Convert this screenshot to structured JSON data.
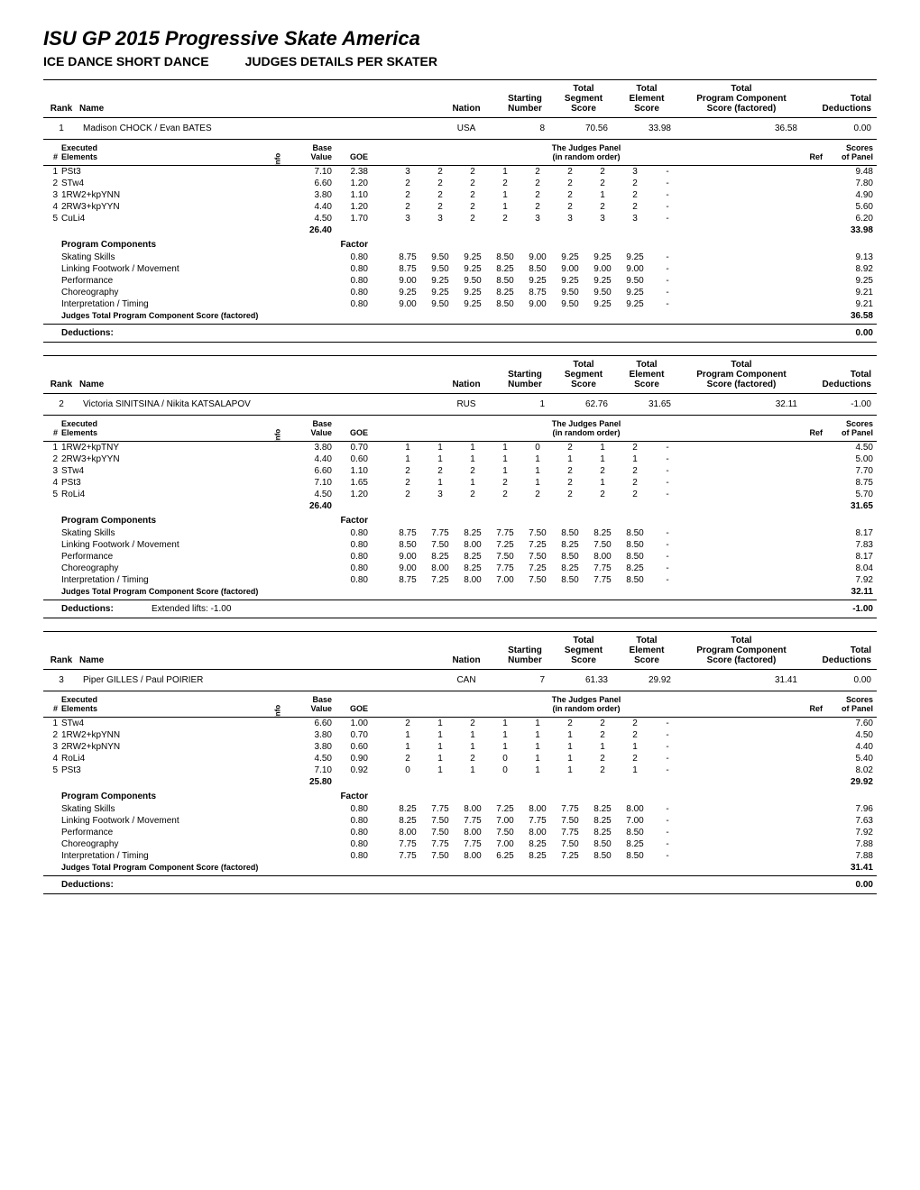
{
  "page": {
    "title": "ISU GP 2015 Progressive Skate America",
    "event": "ICE DANCE SHORT DANCE",
    "sheet": "JUDGES DETAILS PER SKATER"
  },
  "headers": {
    "rank": "Rank",
    "name": "Name",
    "nation": "Nation",
    "start_num": "Starting Number",
    "seg_score": "Total Segment Score",
    "elem_score": "Total Element Score",
    "comp_score": "Total Program Component Score (factored)",
    "deductions": "Total Deductions",
    "num": "#",
    "executed": "Executed Elements",
    "info": "Info",
    "base": "Base Value",
    "goe": "GOE",
    "judges_panel": "The Judges Panel (in random order)",
    "ref": "Ref",
    "sop": "Scores of Panel",
    "pc": "Program Components",
    "factor": "Factor",
    "jtpcs": "Judges Total Program Component Score (factored)",
    "deductions_label": "Deductions:",
    "extended_lifts": "Extended lifts:"
  },
  "colors": {
    "text": "#000000",
    "bg": "#ffffff",
    "border": "#000000"
  },
  "skaters": [
    {
      "rank": "1",
      "name": "Madison CHOCK / Evan BATES",
      "nation": "USA",
      "start_num": "8",
      "seg_score": "70.56",
      "elem_score": "33.98",
      "comp_score": "36.58",
      "deductions": "0.00",
      "elements": [
        {
          "n": "1",
          "code": "PSt3",
          "base": "7.10",
          "goe": "2.38",
          "j": [
            "3",
            "2",
            "2",
            "1",
            "2",
            "2",
            "2",
            "3",
            "-"
          ],
          "sop": "9.48"
        },
        {
          "n": "2",
          "code": "STw4",
          "base": "6.60",
          "goe": "1.20",
          "j": [
            "2",
            "2",
            "2",
            "2",
            "2",
            "2",
            "2",
            "2",
            "-"
          ],
          "sop": "7.80"
        },
        {
          "n": "3",
          "code": "1RW2+kpYNN",
          "base": "3.80",
          "goe": "1.10",
          "j": [
            "2",
            "2",
            "2",
            "1",
            "2",
            "2",
            "1",
            "2",
            "-"
          ],
          "sop": "4.90"
        },
        {
          "n": "4",
          "code": "2RW3+kpYYN",
          "base": "4.40",
          "goe": "1.20",
          "j": [
            "2",
            "2",
            "2",
            "1",
            "2",
            "2",
            "2",
            "2",
            "-"
          ],
          "sop": "5.60"
        },
        {
          "n": "5",
          "code": "CuLi4",
          "base": "4.50",
          "goe": "1.70",
          "j": [
            "3",
            "3",
            "2",
            "2",
            "3",
            "3",
            "3",
            "3",
            "-"
          ],
          "sop": "6.20"
        }
      ],
      "base_total": "26.40",
      "sop_total": "33.98",
      "components": [
        {
          "name": "Skating Skills",
          "factor": "0.80",
          "j": [
            "8.75",
            "9.50",
            "9.25",
            "8.50",
            "9.00",
            "9.25",
            "9.25",
            "9.25",
            "-"
          ],
          "sop": "9.13"
        },
        {
          "name": "Linking Footwork / Movement",
          "factor": "0.80",
          "j": [
            "8.75",
            "9.50",
            "9.25",
            "8.25",
            "8.50",
            "9.00",
            "9.00",
            "9.00",
            "-"
          ],
          "sop": "8.92"
        },
        {
          "name": "Performance",
          "factor": "0.80",
          "j": [
            "9.00",
            "9.25",
            "9.50",
            "8.50",
            "9.25",
            "9.25",
            "9.25",
            "9.50",
            "-"
          ],
          "sop": "9.25"
        },
        {
          "name": "Choreography",
          "factor": "0.80",
          "j": [
            "9.25",
            "9.25",
            "9.25",
            "8.25",
            "8.75",
            "9.50",
            "9.50",
            "9.25",
            "-"
          ],
          "sop": "9.21"
        },
        {
          "name": "Interpretation / Timing",
          "factor": "0.80",
          "j": [
            "9.00",
            "9.50",
            "9.25",
            "8.50",
            "9.00",
            "9.50",
            "9.25",
            "9.25",
            "-"
          ],
          "sop": "9.21"
        }
      ],
      "comp_total": "36.58",
      "ded_detail": "",
      "ded_value": "0.00"
    },
    {
      "rank": "2",
      "name": "Victoria SINITSINA / Nikita KATSALAPOV",
      "nation": "RUS",
      "start_num": "1",
      "seg_score": "62.76",
      "elem_score": "31.65",
      "comp_score": "32.11",
      "deductions": "-1.00",
      "elements": [
        {
          "n": "1",
          "code": "1RW2+kpTNY",
          "base": "3.80",
          "goe": "0.70",
          "j": [
            "1",
            "1",
            "1",
            "1",
            "0",
            "2",
            "1",
            "2",
            "-"
          ],
          "sop": "4.50"
        },
        {
          "n": "2",
          "code": "2RW3+kpYYN",
          "base": "4.40",
          "goe": "0.60",
          "j": [
            "1",
            "1",
            "1",
            "1",
            "1",
            "1",
            "1",
            "1",
            "-"
          ],
          "sop": "5.00"
        },
        {
          "n": "3",
          "code": "STw4",
          "base": "6.60",
          "goe": "1.10",
          "j": [
            "2",
            "2",
            "2",
            "1",
            "1",
            "2",
            "2",
            "2",
            "-"
          ],
          "sop": "7.70"
        },
        {
          "n": "4",
          "code": "PSt3",
          "base": "7.10",
          "goe": "1.65",
          "j": [
            "2",
            "1",
            "1",
            "2",
            "1",
            "2",
            "1",
            "2",
            "-"
          ],
          "sop": "8.75"
        },
        {
          "n": "5",
          "code": "RoLi4",
          "base": "4.50",
          "goe": "1.20",
          "j": [
            "2",
            "3",
            "2",
            "2",
            "2",
            "2",
            "2",
            "2",
            "-"
          ],
          "sop": "5.70"
        }
      ],
      "base_total": "26.40",
      "sop_total": "31.65",
      "components": [
        {
          "name": "Skating Skills",
          "factor": "0.80",
          "j": [
            "8.75",
            "7.75",
            "8.25",
            "7.75",
            "7.50",
            "8.50",
            "8.25",
            "8.50",
            "-"
          ],
          "sop": "8.17"
        },
        {
          "name": "Linking Footwork / Movement",
          "factor": "0.80",
          "j": [
            "8.50",
            "7.50",
            "8.00",
            "7.25",
            "7.25",
            "8.25",
            "7.50",
            "8.50",
            "-"
          ],
          "sop": "7.83"
        },
        {
          "name": "Performance",
          "factor": "0.80",
          "j": [
            "9.00",
            "8.25",
            "8.25",
            "7.50",
            "7.50",
            "8.50",
            "8.00",
            "8.50",
            "-"
          ],
          "sop": "8.17"
        },
        {
          "name": "Choreography",
          "factor": "0.80",
          "j": [
            "9.00",
            "8.00",
            "8.25",
            "7.75",
            "7.25",
            "8.25",
            "7.75",
            "8.25",
            "-"
          ],
          "sop": "8.04"
        },
        {
          "name": "Interpretation / Timing",
          "factor": "0.80",
          "j": [
            "8.75",
            "7.25",
            "8.00",
            "7.00",
            "7.50",
            "8.50",
            "7.75",
            "8.50",
            "-"
          ],
          "sop": "7.92"
        }
      ],
      "comp_total": "32.11",
      "ded_detail": "Extended lifts:   -1.00",
      "ded_value": "-1.00"
    },
    {
      "rank": "3",
      "name": "Piper GILLES / Paul POIRIER",
      "nation": "CAN",
      "start_num": "7",
      "seg_score": "61.33",
      "elem_score": "29.92",
      "comp_score": "31.41",
      "deductions": "0.00",
      "elements": [
        {
          "n": "1",
          "code": "STw4",
          "base": "6.60",
          "goe": "1.00",
          "j": [
            "2",
            "1",
            "2",
            "1",
            "1",
            "2",
            "2",
            "2",
            "-"
          ],
          "sop": "7.60"
        },
        {
          "n": "2",
          "code": "1RW2+kpYNN",
          "base": "3.80",
          "goe": "0.70",
          "j": [
            "1",
            "1",
            "1",
            "1",
            "1",
            "1",
            "2",
            "2",
            "-"
          ],
          "sop": "4.50"
        },
        {
          "n": "3",
          "code": "2RW2+kpNYN",
          "base": "3.80",
          "goe": "0.60",
          "j": [
            "1",
            "1",
            "1",
            "1",
            "1",
            "1",
            "1",
            "1",
            "-"
          ],
          "sop": "4.40"
        },
        {
          "n": "4",
          "code": "RoLi4",
          "base": "4.50",
          "goe": "0.90",
          "j": [
            "2",
            "1",
            "2",
            "0",
            "1",
            "1",
            "2",
            "2",
            "-"
          ],
          "sop": "5.40"
        },
        {
          "n": "5",
          "code": "PSt3",
          "base": "7.10",
          "goe": "0.92",
          "j": [
            "0",
            "1",
            "1",
            "0",
            "1",
            "1",
            "2",
            "1",
            "-"
          ],
          "sop": "8.02"
        }
      ],
      "base_total": "25.80",
      "sop_total": "29.92",
      "components": [
        {
          "name": "Skating Skills",
          "factor": "0.80",
          "j": [
            "8.25",
            "7.75",
            "8.00",
            "7.25",
            "8.00",
            "7.75",
            "8.25",
            "8.00",
            "-"
          ],
          "sop": "7.96"
        },
        {
          "name": "Linking Footwork / Movement",
          "factor": "0.80",
          "j": [
            "8.25",
            "7.50",
            "7.75",
            "7.00",
            "7.75",
            "7.50",
            "8.25",
            "7.00",
            "-"
          ],
          "sop": "7.63"
        },
        {
          "name": "Performance",
          "factor": "0.80",
          "j": [
            "8.00",
            "7.50",
            "8.00",
            "7.50",
            "8.00",
            "7.75",
            "8.25",
            "8.50",
            "-"
          ],
          "sop": "7.92"
        },
        {
          "name": "Choreography",
          "factor": "0.80",
          "j": [
            "7.75",
            "7.75",
            "7.75",
            "7.00",
            "8.25",
            "7.50",
            "8.50",
            "8.25",
            "-"
          ],
          "sop": "7.88"
        },
        {
          "name": "Interpretation / Timing",
          "factor": "0.80",
          "j": [
            "7.75",
            "7.50",
            "8.00",
            "6.25",
            "8.25",
            "7.25",
            "8.50",
            "8.50",
            "-"
          ],
          "sop": "7.88"
        }
      ],
      "comp_total": "31.41",
      "ded_detail": "",
      "ded_value": "0.00"
    }
  ]
}
